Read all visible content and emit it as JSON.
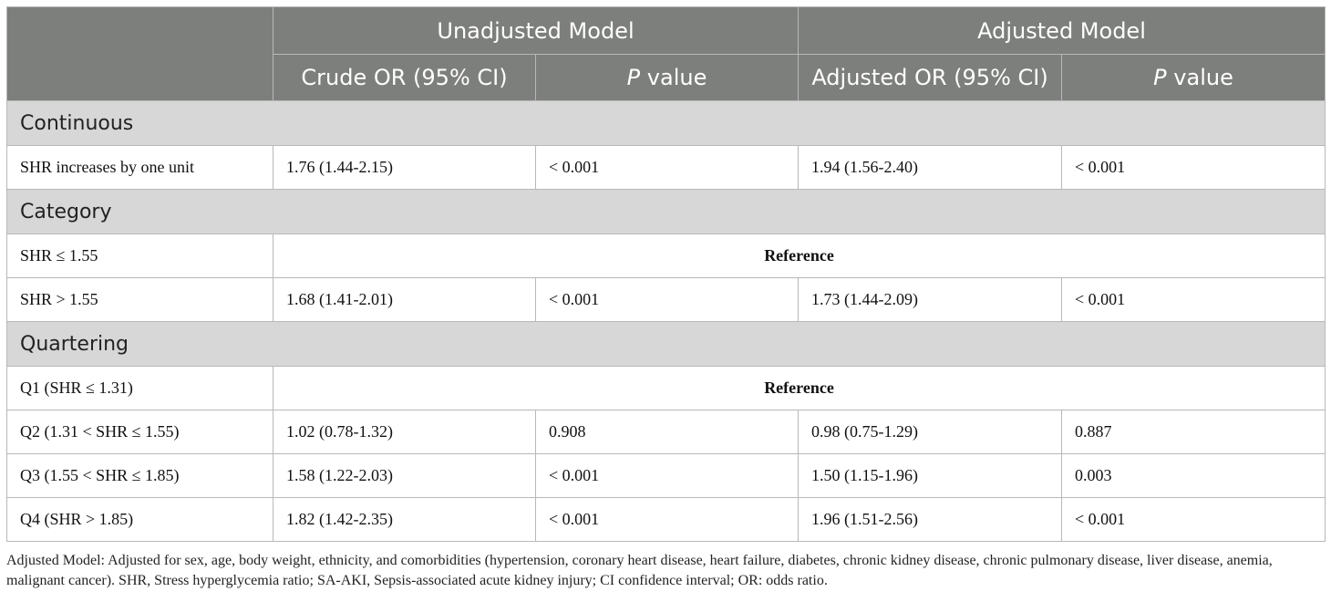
{
  "header": {
    "group_unadjusted": "Unadjusted Model",
    "group_adjusted": "Adjusted Model",
    "col_crude": "Crude OR (95% CI)",
    "col_adjusted": "Adjusted OR (95% CI)",
    "p_italic": "P",
    "p_rest": " value"
  },
  "sections": {
    "continuous": "Continuous",
    "category": "Category",
    "quartering": "Quartering"
  },
  "rows": {
    "shr_unit": [
      "SHR increases by one unit",
      "1.76 (1.44-2.15)",
      "< 0.001",
      "1.94 (1.56-2.40)",
      "< 0.001"
    ],
    "shr_le": [
      "SHR ≤ 1.55",
      "Reference"
    ],
    "shr_gt": [
      "SHR > 1.55",
      "1.68 (1.41-2.01)",
      "< 0.001",
      "1.73 (1.44-2.09)",
      "< 0.001"
    ],
    "q1": [
      "Q1 (SHR ≤ 1.31)",
      "Reference"
    ],
    "q2": [
      "Q2 (1.31 < SHR ≤ 1.55)",
      "1.02 (0.78-1.32)",
      "0.908",
      "0.98 (0.75-1.29)",
      "0.887"
    ],
    "q3": [
      "Q3 (1.55 < SHR ≤ 1.85)",
      "1.58 (1.22-2.03)",
      "< 0.001",
      "1.50 (1.15-1.96)",
      "0.003"
    ],
    "q4": [
      "Q4 (SHR > 1.85)",
      "1.82 (1.42-2.35)",
      "< 0.001",
      "1.96 (1.51-2.56)",
      "< 0.001"
    ]
  },
  "footnote": "Adjusted Model: Adjusted for sex, age, body weight, ethnicity, and comorbidities (hypertension, coronary heart disease, heart failure, diabetes, chronic kidney disease, chronic pulmonary disease, liver disease, anemia, malignant cancer). SHR, Stress hyperglycemia ratio; SA-AKI, Sepsis-associated acute kidney injury; CI confidence interval; OR: odds ratio."
}
